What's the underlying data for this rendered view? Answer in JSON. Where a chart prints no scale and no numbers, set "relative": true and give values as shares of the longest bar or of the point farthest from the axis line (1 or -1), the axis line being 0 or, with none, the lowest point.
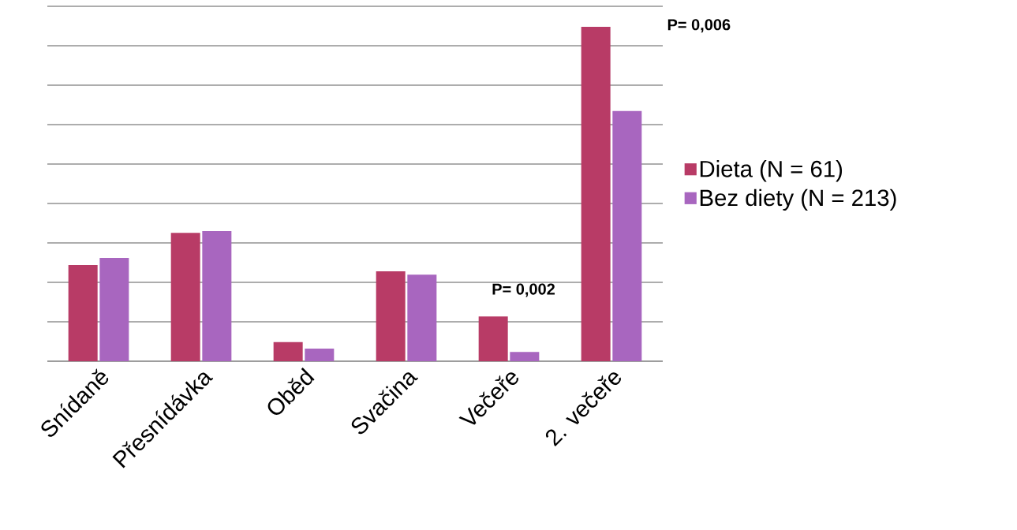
{
  "chart_data": {
    "type": "bar",
    "relative": true,
    "categories": [
      "Snídaně",
      "Přesnídávka",
      "Oběd",
      "Svačina",
      "Večeře",
      "2. večeře"
    ],
    "series": [
      {
        "name": "Dieta (N = 61)",
        "color": "#b83b66",
        "values": [
          0.288,
          0.384,
          0.057,
          0.269,
          0.134,
          1
        ]
      },
      {
        "name": "Bez diety (N = 213)",
        "color": "#a866bf",
        "values": [
          0.309,
          0.389,
          0.038,
          0.259,
          0.028,
          0.748
        ]
      }
    ],
    "annotations": [
      "P= 0,002",
      "P= 0,006"
    ],
    "grid": "y",
    "legend": "right"
  }
}
